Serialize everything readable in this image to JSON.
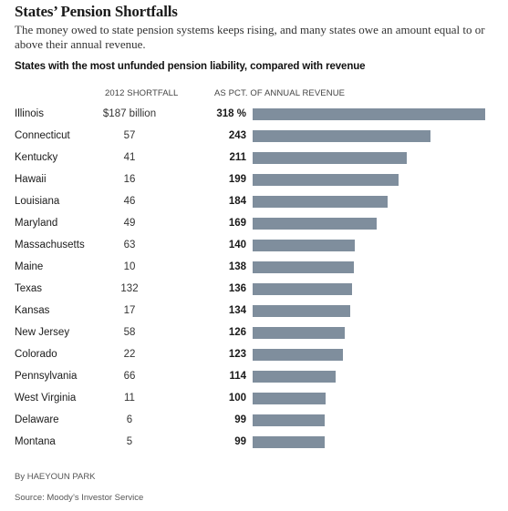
{
  "title": "States’ Pension Shortfalls",
  "subtitle": "The money owed to state pension systems keeps rising, and many states owe an amount equal to or above their annual revenue.",
  "chart_heading": "States with the most unfunded pension liability, compared with revenue",
  "columns": {
    "shortfall": "2012 SHORTFALL",
    "pct": "AS PCT. OF ANNUAL REVENUE"
  },
  "byline": "By HAEYOUN PARK",
  "source": "Source: Moody’s Investor Service",
  "colors": {
    "bar": "#7f8e9d"
  },
  "chart_data": {
    "type": "bar",
    "orientation": "horizontal",
    "title": "States with the most unfunded pension liability, compared with revenue",
    "categories": [
      "Illinois",
      "Connecticut",
      "Kentucky",
      "Hawaii",
      "Louisiana",
      "Maryland",
      "Massachusetts",
      "Maine",
      "Texas",
      "Kansas",
      "New Jersey",
      "Colorado",
      "Pennsylvania",
      "West Virginia",
      "Delaware",
      "Montana"
    ],
    "shortfall_labels": [
      "$187 billion",
      "57",
      "41",
      "16",
      "46",
      "49",
      "63",
      "10",
      "132",
      "17",
      "58",
      "22",
      "66",
      "11",
      "6",
      "5"
    ],
    "pct_labels": [
      "318 %",
      "243",
      "211",
      "199",
      "184",
      "169",
      "140",
      "138",
      "136",
      "134",
      "126",
      "123",
      "114",
      "100",
      "99",
      "99"
    ],
    "values": [
      318,
      243,
      211,
      199,
      184,
      169,
      140,
      138,
      136,
      134,
      126,
      123,
      114,
      100,
      99,
      99
    ],
    "xlim": [
      0,
      318
    ],
    "grid": false,
    "legend": "none"
  }
}
